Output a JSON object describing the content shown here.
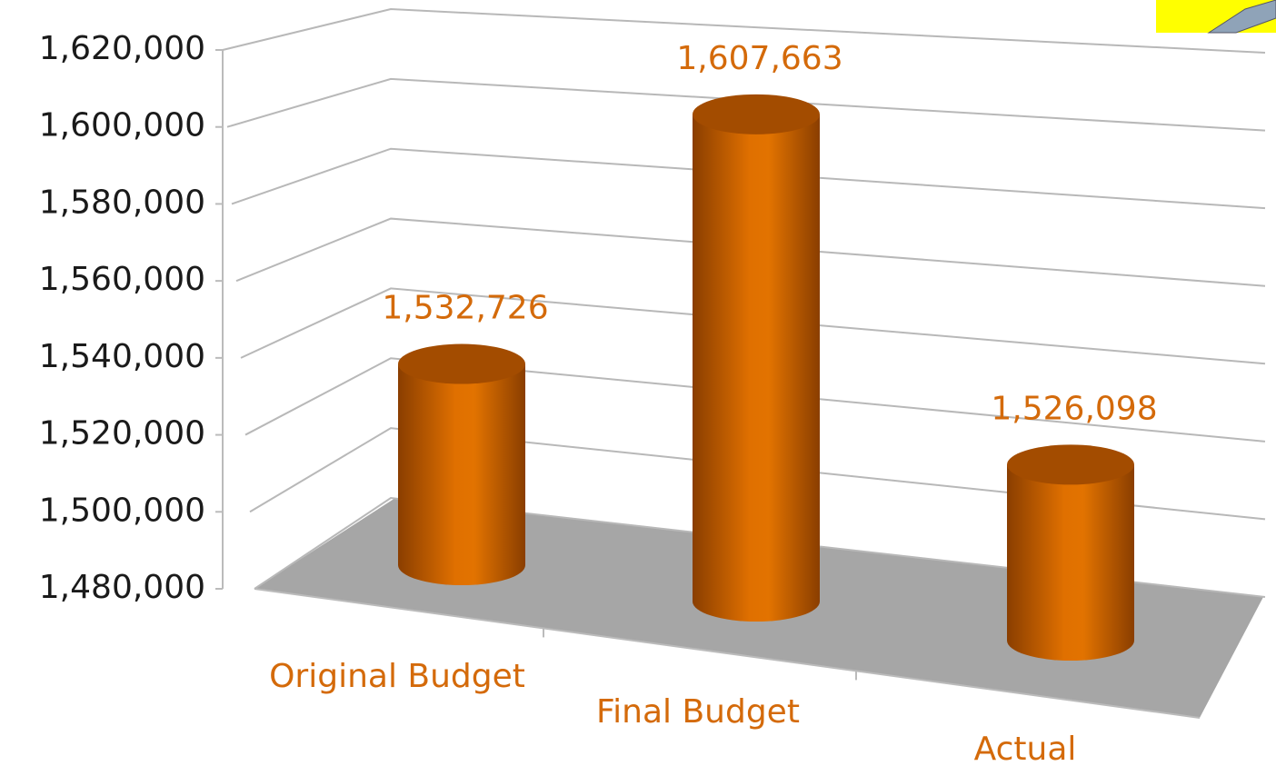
{
  "chart_data": {
    "type": "bar3d",
    "categories": [
      "Original Budget",
      "Final Budget",
      "Actual"
    ],
    "values": [
      1532726,
      1607663,
      1526098
    ],
    "value_labels": [
      "1,532,726",
      "1,607,663",
      "1,526,098"
    ],
    "color": "#d96b00",
    "ylim": [
      1480000,
      1620000
    ],
    "yticks": [
      {
        "value": 1480000,
        "label": "1,480,000"
      },
      {
        "value": 1500000,
        "label": "1,500,000"
      },
      {
        "value": 1520000,
        "label": "1,520,000"
      },
      {
        "value": 1540000,
        "label": "1,540,000"
      },
      {
        "value": 1560000,
        "label": "1,560,000"
      },
      {
        "value": 1580000,
        "label": "1,580,000"
      },
      {
        "value": 1600000,
        "label": "1,600,000"
      },
      {
        "value": 1620000,
        "label": "1,620,000"
      }
    ],
    "grid": true
  }
}
